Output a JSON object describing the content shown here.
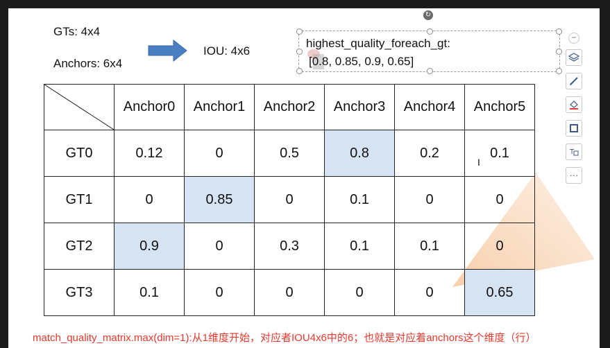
{
  "header": {
    "gts": "GTs: 4x4",
    "anchors": "Anchors: 6x4",
    "iou": "IOU: 4x6"
  },
  "highest_quality_box": {
    "title": "highest_quality_foreach_gt:",
    "values": "[0.8, 0.85, 0.9, 0.65]"
  },
  "table": {
    "columns": [
      "Anchor0",
      "Anchor1",
      "Anchor2",
      "Anchor3",
      "Anchor4",
      "Anchor5"
    ],
    "rows": [
      {
        "label": "GT0",
        "cells": [
          "0.12",
          "0",
          "0.5",
          "0.8",
          "0.2",
          "0.1"
        ],
        "highlight": 3
      },
      {
        "label": "GT1",
        "cells": [
          "0",
          "0.85",
          "0",
          "0.1",
          "0",
          "0"
        ],
        "highlight": 1
      },
      {
        "label": "GT2",
        "cells": [
          "0.9",
          "0",
          "0.3",
          "0.1",
          "0.1",
          "0"
        ],
        "highlight": 0
      },
      {
        "label": "GT3",
        "cells": [
          "0.1",
          "0",
          "0",
          "0",
          "0",
          "0.65"
        ],
        "highlight": 5
      }
    ]
  },
  "footnote": "match_quality_matrix.max(dim=1):从1维度开始，对应者IOU4x6中的6；也就是对应着anchors这个维度（行）",
  "toolbar": {
    "items": [
      "collapse-icon",
      "layers-icon",
      "pen-icon",
      "fill-icon",
      "border-icon",
      "text-style-icon",
      "more-icon"
    ],
    "more_label": "···"
  },
  "colors": {
    "highlight": "#d6e3f3",
    "arrow": "#4a7fc1",
    "footnote": "#e8392c"
  }
}
